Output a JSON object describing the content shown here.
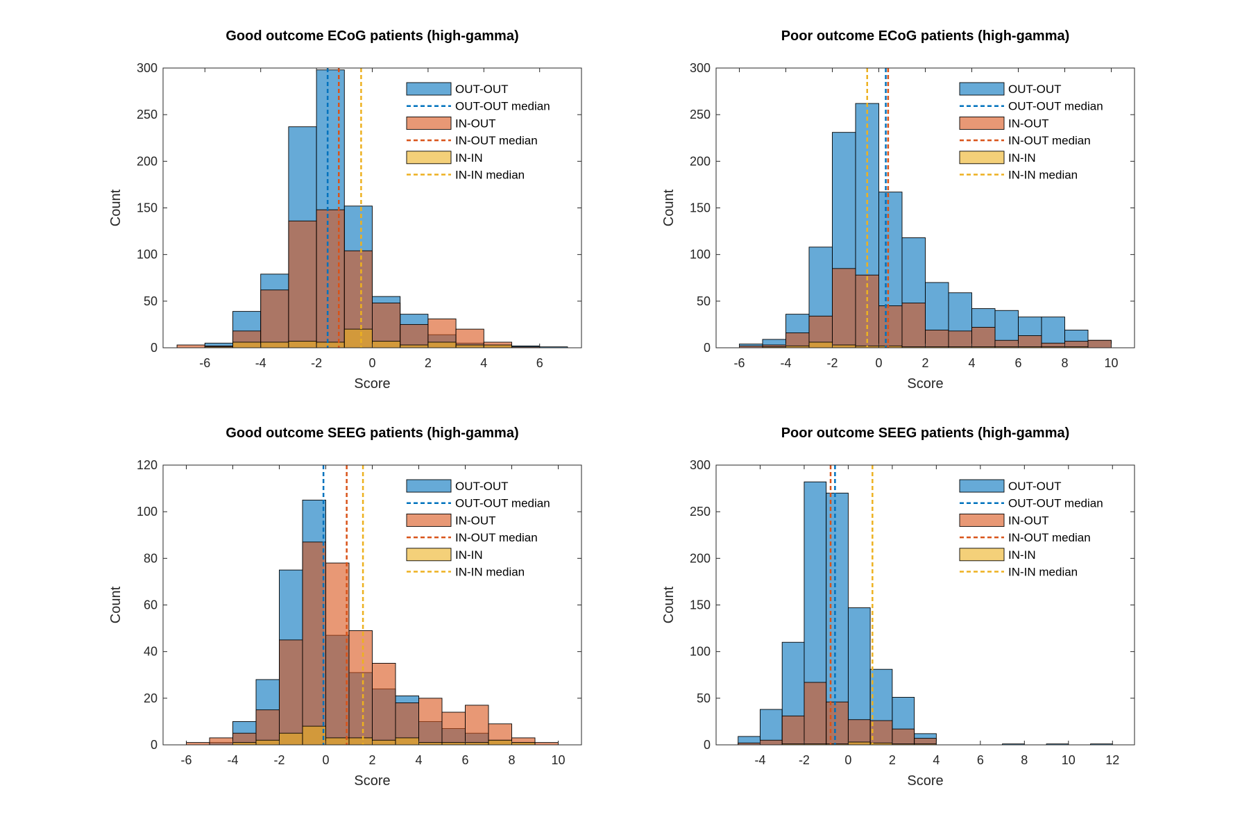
{
  "colors": {
    "out_out": "#0072BD",
    "in_out": "#D95319",
    "in_in": "#EDB120"
  },
  "chart_data": [
    {
      "type": "histogram",
      "title": "Good outcome ECoG patients (high-gamma)",
      "xlabel": "Score",
      "ylabel": "Count",
      "xlim": [
        -7.5,
        7.5
      ],
      "ylim": [
        0,
        300
      ],
      "xticks": [
        -6,
        -4,
        -2,
        0,
        2,
        4,
        6
      ],
      "yticks": [
        0,
        50,
        100,
        150,
        200,
        250,
        300
      ],
      "bin_width": 1,
      "series": [
        {
          "name": "OUT-OUT",
          "key": "out_out",
          "bins": [
            [
              -7,
              0
            ],
            [
              -6,
              5
            ],
            [
              -5,
              39
            ],
            [
              -4,
              79
            ],
            [
              -3,
              237
            ],
            [
              -2,
              298
            ],
            [
              -1,
              152
            ],
            [
              0,
              55
            ],
            [
              1,
              36
            ],
            [
              2,
              14
            ],
            [
              3,
              5
            ],
            [
              4,
              3
            ],
            [
              5,
              2
            ],
            [
              6,
              1
            ]
          ]
        },
        {
          "name": "IN-OUT",
          "key": "in_out",
          "bins": [
            [
              -7,
              3
            ],
            [
              -6,
              2
            ],
            [
              -5,
              18
            ],
            [
              -4,
              62
            ],
            [
              -3,
              136
            ],
            [
              -2,
              148
            ],
            [
              -1,
              104
            ],
            [
              0,
              48
            ],
            [
              1,
              25
            ],
            [
              2,
              31
            ],
            [
              3,
              20
            ],
            [
              4,
              6
            ],
            [
              5,
              1
            ],
            [
              6,
              0
            ]
          ]
        },
        {
          "name": "IN-IN",
          "key": "in_in",
          "bins": [
            [
              -7,
              0
            ],
            [
              -6,
              1
            ],
            [
              -5,
              6
            ],
            [
              -4,
              6
            ],
            [
              -3,
              7
            ],
            [
              -2,
              6
            ],
            [
              -1,
              20
            ],
            [
              0,
              7
            ],
            [
              1,
              3
            ],
            [
              2,
              6
            ],
            [
              3,
              3
            ],
            [
              4,
              3
            ],
            [
              5,
              0
            ],
            [
              6,
              0
            ]
          ]
        }
      ],
      "medians": [
        {
          "name": "OUT-OUT median",
          "key": "out_out",
          "value": -1.6
        },
        {
          "name": "IN-OUT median",
          "key": "in_out",
          "value": -1.2
        },
        {
          "name": "IN-IN median",
          "key": "in_in",
          "value": -0.4
        }
      ],
      "legend_position": "top-right"
    },
    {
      "type": "histogram",
      "title": "Poor outcome ECoG patients (high-gamma)",
      "xlabel": "Score",
      "ylabel": "Count",
      "xlim": [
        -7,
        11
      ],
      "ylim": [
        0,
        300
      ],
      "xticks": [
        -6,
        -4,
        -2,
        0,
        2,
        4,
        6,
        8,
        10
      ],
      "yticks": [
        0,
        50,
        100,
        150,
        200,
        250,
        300
      ],
      "bin_width": 1,
      "series": [
        {
          "name": "OUT-OUT",
          "key": "out_out",
          "bins": [
            [
              -6,
              4
            ],
            [
              -5,
              9
            ],
            [
              -4,
              36
            ],
            [
              -3,
              108
            ],
            [
              -2,
              231
            ],
            [
              -1,
              262
            ],
            [
              0,
              167
            ],
            [
              1,
              118
            ],
            [
              2,
              70
            ],
            [
              3,
              59
            ],
            [
              4,
              42
            ],
            [
              5,
              40
            ],
            [
              6,
              33
            ],
            [
              7,
              33
            ],
            [
              8,
              19
            ],
            [
              9,
              8
            ]
          ]
        },
        {
          "name": "IN-OUT",
          "key": "in_out",
          "bins": [
            [
              -6,
              2
            ],
            [
              -5,
              3
            ],
            [
              -4,
              16
            ],
            [
              -3,
              34
            ],
            [
              -2,
              85
            ],
            [
              -1,
              78
            ],
            [
              0,
              45
            ],
            [
              1,
              48
            ],
            [
              2,
              19
            ],
            [
              3,
              18
            ],
            [
              4,
              22
            ],
            [
              5,
              8
            ],
            [
              6,
              13
            ],
            [
              7,
              5
            ],
            [
              8,
              7
            ],
            [
              9,
              8
            ]
          ]
        },
        {
          "name": "IN-IN",
          "key": "in_in",
          "bins": [
            [
              -6,
              0
            ],
            [
              -5,
              1
            ],
            [
              -4,
              2
            ],
            [
              -3,
              6
            ],
            [
              -2,
              3
            ],
            [
              -1,
              2
            ],
            [
              0,
              2
            ],
            [
              1,
              1
            ],
            [
              2,
              1
            ],
            [
              3,
              1
            ],
            [
              4,
              1
            ],
            [
              5,
              1
            ],
            [
              6,
              1
            ],
            [
              7,
              1
            ],
            [
              8,
              1
            ],
            [
              9,
              0
            ]
          ]
        }
      ],
      "medians": [
        {
          "name": "OUT-OUT median",
          "key": "out_out",
          "value": 0.3
        },
        {
          "name": "IN-OUT median",
          "key": "in_out",
          "value": 0.4
        },
        {
          "name": "IN-IN median",
          "key": "in_in",
          "value": -0.5
        }
      ],
      "legend_position": "top-right"
    },
    {
      "type": "histogram",
      "title": "Good outcome SEEG patients (high-gamma)",
      "xlabel": "Score",
      "ylabel": "Count",
      "xlim": [
        -7,
        11
      ],
      "ylim": [
        0,
        120
      ],
      "xticks": [
        -6,
        -4,
        -2,
        0,
        2,
        4,
        6,
        8,
        10
      ],
      "yticks": [
        0,
        20,
        40,
        60,
        80,
        100,
        120
      ],
      "bin_width": 1,
      "series": [
        {
          "name": "OUT-OUT",
          "key": "out_out",
          "bins": [
            [
              -6,
              0
            ],
            [
              -5,
              1
            ],
            [
              -4,
              10
            ],
            [
              -3,
              28
            ],
            [
              -2,
              75
            ],
            [
              -1,
              105
            ],
            [
              0,
              47
            ],
            [
              1,
              31
            ],
            [
              2,
              24
            ],
            [
              3,
              21
            ],
            [
              4,
              10
            ],
            [
              5,
              7
            ],
            [
              6,
              5
            ],
            [
              7,
              2
            ],
            [
              8,
              1
            ],
            [
              9,
              0
            ]
          ]
        },
        {
          "name": "IN-OUT",
          "key": "in_out",
          "bins": [
            [
              -6,
              1
            ],
            [
              -5,
              3
            ],
            [
              -4,
              5
            ],
            [
              -3,
              15
            ],
            [
              -2,
              45
            ],
            [
              -1,
              87
            ],
            [
              0,
              78
            ],
            [
              1,
              49
            ],
            [
              2,
              35
            ],
            [
              3,
              18
            ],
            [
              4,
              20
            ],
            [
              5,
              14
            ],
            [
              6,
              17
            ],
            [
              7,
              9
            ],
            [
              8,
              3
            ],
            [
              9,
              1
            ]
          ]
        },
        {
          "name": "IN-IN",
          "key": "in_in",
          "bins": [
            [
              -6,
              0
            ],
            [
              -5,
              0
            ],
            [
              -4,
              1
            ],
            [
              -3,
              2
            ],
            [
              -2,
              5
            ],
            [
              -1,
              8
            ],
            [
              0,
              3
            ],
            [
              1,
              3
            ],
            [
              2,
              2
            ],
            [
              3,
              3
            ],
            [
              4,
              1
            ],
            [
              5,
              1
            ],
            [
              6,
              1
            ],
            [
              7,
              2
            ],
            [
              8,
              1
            ],
            [
              9,
              0
            ]
          ]
        }
      ],
      "medians": [
        {
          "name": "OUT-OUT median",
          "key": "out_out",
          "value": -0.1
        },
        {
          "name": "IN-OUT median",
          "key": "in_out",
          "value": 0.9
        },
        {
          "name": "IN-IN median",
          "key": "in_in",
          "value": 1.6
        }
      ],
      "legend_position": "top-right"
    },
    {
      "type": "histogram",
      "title": "Poor outcome SEEG patients (high-gamma)",
      "xlabel": "Score",
      "ylabel": "Count",
      "xlim": [
        -6,
        13
      ],
      "ylim": [
        0,
        300
      ],
      "xticks": [
        -4,
        -2,
        0,
        2,
        4,
        6,
        8,
        10,
        12
      ],
      "yticks": [
        0,
        50,
        100,
        150,
        200,
        250,
        300
      ],
      "bin_width": 1,
      "series": [
        {
          "name": "OUT-OUT",
          "key": "out_out",
          "bins": [
            [
              -5,
              9
            ],
            [
              -4,
              38
            ],
            [
              -3,
              110
            ],
            [
              -2,
              282
            ],
            [
              -1,
              270
            ],
            [
              0,
              147
            ],
            [
              1,
              81
            ],
            [
              2,
              51
            ],
            [
              3,
              12
            ],
            [
              7,
              1
            ],
            [
              9,
              1
            ],
            [
              11,
              1
            ]
          ]
        },
        {
          "name": "IN-OUT",
          "key": "in_out",
          "bins": [
            [
              -5,
              2
            ],
            [
              -4,
              5
            ],
            [
              -3,
              31
            ],
            [
              -2,
              67
            ],
            [
              -1,
              46
            ],
            [
              0,
              27
            ],
            [
              1,
              26
            ],
            [
              2,
              17
            ],
            [
              3,
              7
            ]
          ]
        },
        {
          "name": "IN-IN",
          "key": "in_in",
          "bins": [
            [
              -5,
              0
            ],
            [
              -4,
              0
            ],
            [
              -3,
              1
            ],
            [
              -2,
              1
            ],
            [
              -1,
              1
            ],
            [
              0,
              3
            ],
            [
              1,
              2
            ],
            [
              2,
              1
            ],
            [
              3,
              1
            ]
          ]
        }
      ],
      "medians": [
        {
          "name": "OUT-OUT median",
          "key": "out_out",
          "value": -0.6
        },
        {
          "name": "IN-OUT median",
          "key": "in_out",
          "value": -0.8
        },
        {
          "name": "IN-IN median",
          "key": "in_in",
          "value": 1.1
        }
      ],
      "legend_position": "top-right"
    }
  ]
}
